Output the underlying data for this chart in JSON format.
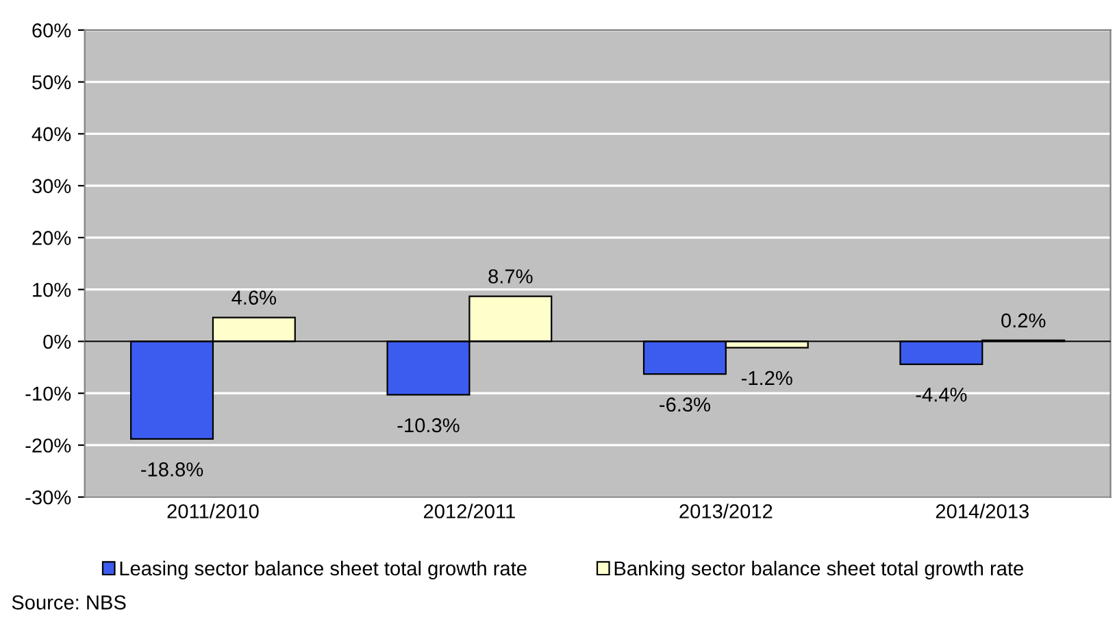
{
  "chart_data": {
    "type": "bar",
    "categories": [
      "2011/2010",
      "2012/2011",
      "2013/2012",
      "2014/2013"
    ],
    "series": [
      {
        "name": "Leasing sector balance sheet total growth rate",
        "color": "#3c5cf0",
        "values": [
          -18.8,
          -10.3,
          -6.3,
          -4.4
        ],
        "value_labels": [
          "-18.8%",
          "-10.3%",
          "-6.3%",
          "-4.4%"
        ]
      },
      {
        "name": "Banking sector balance sheet total growth rate",
        "color": "#ffffcc",
        "values": [
          4.6,
          8.7,
          -1.2,
          0.2
        ],
        "value_labels": [
          "4.6%",
          "8.7%",
          "-1.2%",
          "0.2%"
        ]
      }
    ],
    "ylim": [
      -30,
      60
    ],
    "yticks": [
      {
        "value": -30,
        "label": "-30%"
      },
      {
        "value": -20,
        "label": "-20%"
      },
      {
        "value": -10,
        "label": "-10%"
      },
      {
        "value": 0,
        "label": "0%"
      },
      {
        "value": 10,
        "label": "10%"
      },
      {
        "value": 20,
        "label": "20%"
      },
      {
        "value": 30,
        "label": "30%"
      },
      {
        "value": 40,
        "label": "40%"
      },
      {
        "value": 50,
        "label": "50%"
      },
      {
        "value": 60,
        "label": "60%"
      }
    ],
    "grid": "y",
    "legend": "bottom",
    "annotations": [
      "Source: NBS"
    ]
  }
}
